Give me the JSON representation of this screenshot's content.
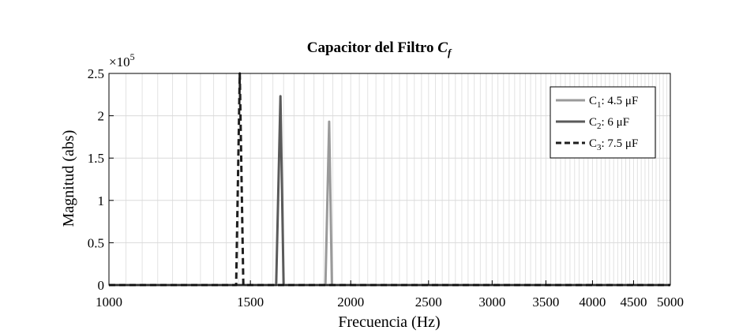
{
  "chart_data": {
    "type": "line",
    "title": "Capacitor del Filtro",
    "title_symbol": "C",
    "title_symbol_sub": "f",
    "xlabel": "Frecuencia  (Hz)",
    "ylabel": "Magnitud (abs)",
    "y_multiplier": "×10",
    "y_multiplier_exp": "5",
    "x_scale": "log",
    "xlim": [
      1000,
      5000
    ],
    "ylim": [
      0,
      2.5
    ],
    "grid": true,
    "x_ticks": [
      1000,
      1500,
      2000,
      2500,
      3000,
      3500,
      4000,
      4500,
      5000
    ],
    "x_tick_labels": [
      "1000",
      "1500",
      "2000",
      "2500",
      "3000",
      "3500",
      "4000",
      "4500",
      "5000"
    ],
    "y_ticks": [
      0,
      0.5,
      1,
      1.5,
      2,
      2.5
    ],
    "y_tick_labels": [
      "0",
      "0.5",
      "1",
      "1.5",
      "2",
      "2.5"
    ],
    "legend_position": "top-right",
    "series": [
      {
        "name": "C",
        "name_sub": "1",
        "name_rest": ": 4.5 μF",
        "color": "#9a9a9a",
        "dash": "solid",
        "x": [
          1000,
          1860,
          1880,
          1895,
          5000
        ],
        "y": [
          0,
          0,
          1.93,
          0,
          0
        ]
      },
      {
        "name": "C",
        "name_sub": "2",
        "name_rest": ": 6 μF",
        "color": "#5a5a5a",
        "dash": "solid",
        "x": [
          1000,
          1615,
          1635,
          1650,
          5000
        ],
        "y": [
          0,
          0,
          2.23,
          0,
          0
        ]
      },
      {
        "name": "C",
        "name_sub": "3",
        "name_rest": ": 7.5 μF",
        "color": "#1e1e1e",
        "dash": "dashed",
        "x": [
          1000,
          1440,
          1455,
          1470,
          5000
        ],
        "y": [
          0,
          0,
          2.5,
          0,
          0
        ]
      }
    ]
  }
}
